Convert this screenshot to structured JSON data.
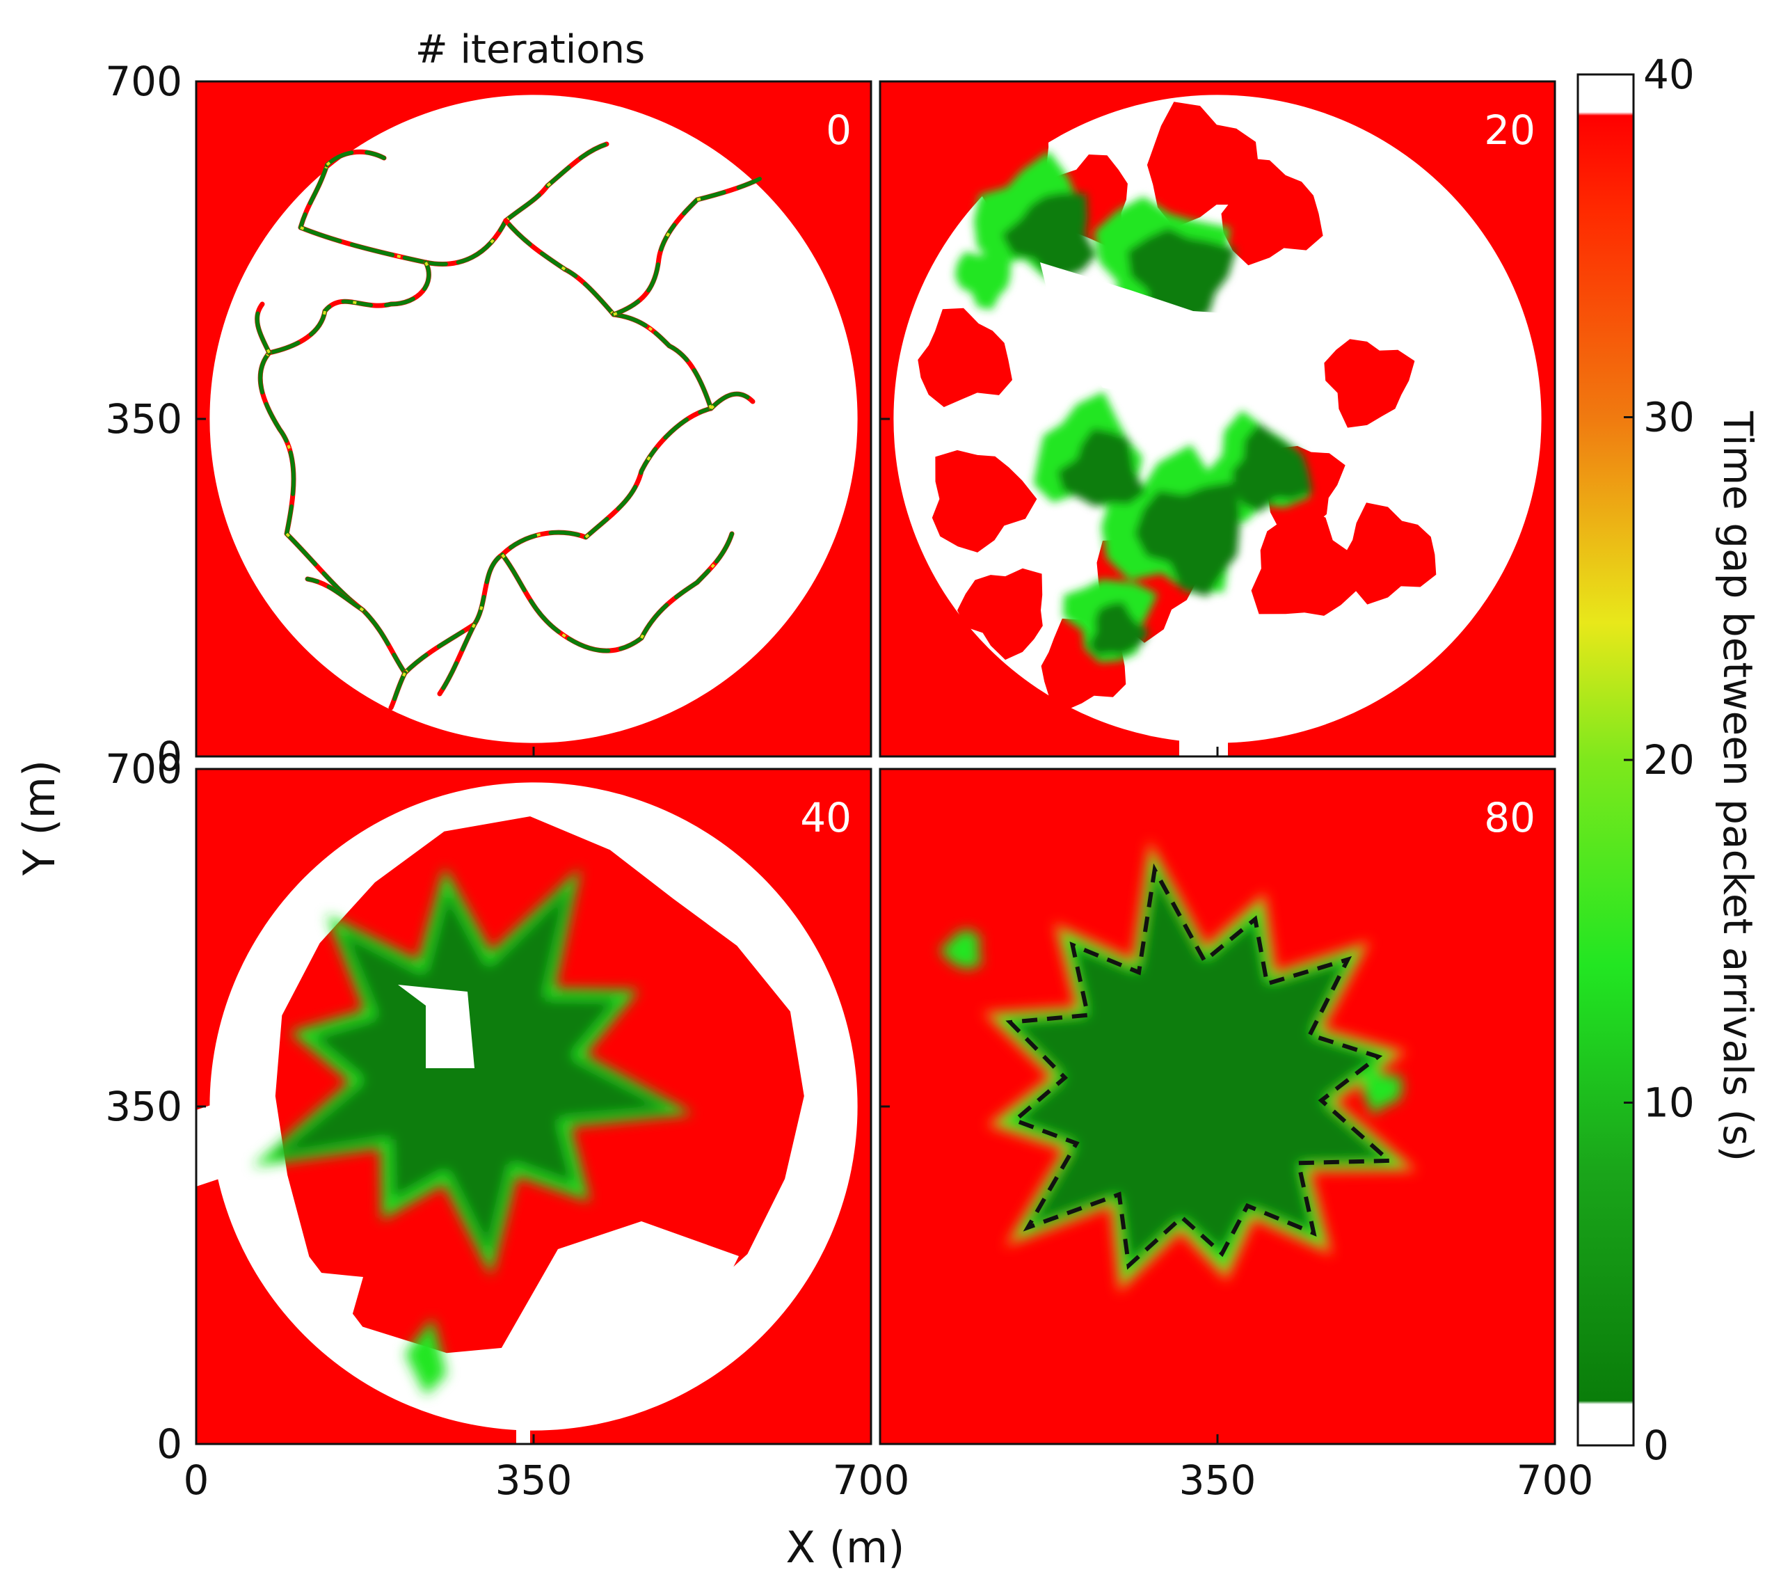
{
  "chart_data": {
    "type": "heatmap",
    "panel_header": "# iterations",
    "xlabel": "X (m)",
    "ylabel": "Y (m)",
    "xlim": [
      0,
      700
    ],
    "ylim": [
      0,
      700
    ],
    "x_ticks": [
      {
        "value": 0,
        "label": "0"
      },
      {
        "value": 350,
        "label": "350"
      },
      {
        "value": 700,
        "label": "700"
      }
    ],
    "y_ticks": [
      {
        "value": 0,
        "label": "0"
      },
      {
        "value": 350,
        "label": "350"
      },
      {
        "value": 700,
        "label": "700"
      }
    ],
    "deployment_region": {
      "shape": "circle",
      "center": [
        350,
        350
      ],
      "radius": 350
    },
    "panels": [
      {
        "iterations": "0",
        "label": "0",
        "state": "paths"
      },
      {
        "iterations": "20",
        "label": "20",
        "state": "partial"
      },
      {
        "iterations": "40",
        "label": "40",
        "state": "expanded"
      },
      {
        "iterations": "80",
        "label": "80",
        "state": "converged",
        "dashed_boundary": true
      }
    ],
    "colorbar": {
      "label": "Time gap between packet arrivals (s)",
      "range": [
        0,
        40
      ],
      "ticks": [
        {
          "value": 0,
          "label": "0"
        },
        {
          "value": 10,
          "label": "10"
        },
        {
          "value": 20,
          "label": "20"
        },
        {
          "value": 30,
          "label": "30"
        },
        {
          "value": 40,
          "label": "40"
        }
      ],
      "stops": [
        {
          "value": 0,
          "color": "#ffffff"
        },
        {
          "value": 1.2,
          "color": "#ffffff"
        },
        {
          "value": 1.3,
          "color": "#0a7d0a"
        },
        {
          "value": 8,
          "color": "#1aa51a"
        },
        {
          "value": 14,
          "color": "#22e622"
        },
        {
          "value": 20,
          "color": "#7ee81c"
        },
        {
          "value": 24,
          "color": "#e8e81a"
        },
        {
          "value": 30,
          "color": "#f07a10"
        },
        {
          "value": 36,
          "color": "#ff2a00"
        },
        {
          "value": 38.8,
          "color": "#ff0000"
        },
        {
          "value": 38.9,
          "color": "#ffffff"
        },
        {
          "value": 40,
          "color": "#ffffff"
        }
      ]
    },
    "colors": {
      "low_gap": "#0a7d0a",
      "mid_gap": "#22e622",
      "high_gap": "#ff0000",
      "no_data": "#ffffff"
    }
  }
}
